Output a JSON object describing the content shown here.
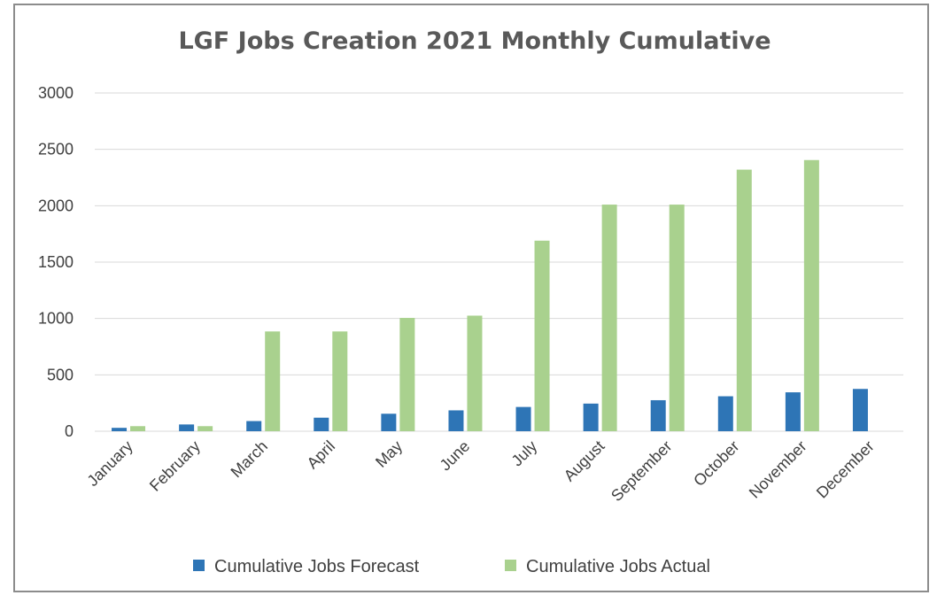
{
  "chart_data": {
    "type": "bar",
    "title": "LGF  Jobs Creation 2021 Monthly Cumulative",
    "xlabel": "",
    "ylabel": "",
    "categories": [
      "January",
      "February",
      "March",
      "April",
      "May",
      "June",
      "July",
      "August",
      "September",
      "October",
      "November",
      "December"
    ],
    "series": [
      {
        "name": "Cumulative Jobs Forecast",
        "color": "#2e75b6",
        "values": [
          30,
          60,
          90,
          120,
          155,
          185,
          215,
          245,
          275,
          310,
          345,
          375
        ]
      },
      {
        "name": "Cumulative Jobs Actual",
        "color": "#a9d18e",
        "values": [
          45,
          45,
          885,
          885,
          1005,
          1025,
          1690,
          2010,
          2010,
          2320,
          2405,
          null
        ]
      }
    ],
    "ylim": [
      0,
      3000
    ],
    "yticks": [
      0,
      500,
      1000,
      1500,
      2000,
      2500,
      3000
    ],
    "grid": true,
    "gridColor": "#d9d9d9",
    "legend": "bottom"
  }
}
